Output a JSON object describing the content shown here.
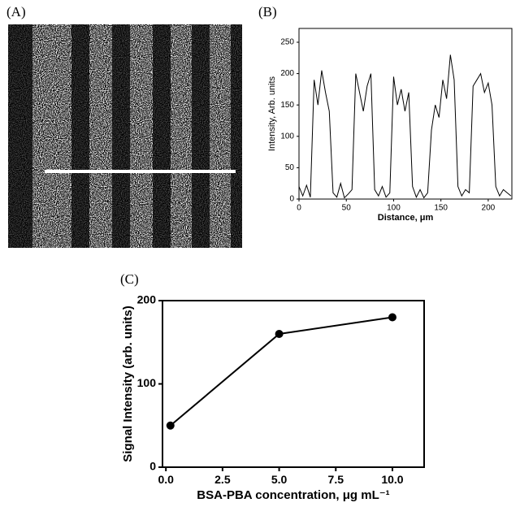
{
  "image_panel": {
    "label": "(A)"
  },
  "chart_data": [
    {
      "type": "line",
      "panel_label": "(B)",
      "x_label": "Distance, μm",
      "y_label": "Intensity, Arb. units",
      "xlim": [
        0,
        225
      ],
      "ylim": [
        0,
        272
      ],
      "xticks": [
        0,
        50,
        100,
        150,
        200
      ],
      "yticks": [
        0,
        50,
        100,
        150,
        200,
        250
      ],
      "markers": false,
      "color": "#000000",
      "series": [
        {
          "x": [
            0,
            4,
            8,
            12,
            16,
            20,
            24,
            28,
            32,
            36,
            40,
            44,
            48,
            52,
            56,
            60,
            64,
            68,
            72,
            76,
            80,
            84,
            88,
            92,
            96,
            100,
            104,
            108,
            112,
            116,
            120,
            124,
            128,
            132,
            136,
            140,
            144,
            148,
            152,
            156,
            160,
            164,
            168,
            172,
            176,
            180,
            184,
            188,
            192,
            196,
            200,
            204,
            208,
            212,
            216,
            220,
            224
          ],
          "values": [
            20,
            5,
            22,
            3,
            190,
            150,
            205,
            170,
            140,
            10,
            3,
            25,
            2,
            8,
            15,
            200,
            170,
            140,
            180,
            200,
            15,
            5,
            20,
            3,
            10,
            195,
            150,
            175,
            140,
            170,
            20,
            3,
            15,
            2,
            10,
            110,
            150,
            130,
            190,
            160,
            230,
            190,
            20,
            5,
            15,
            10,
            180,
            190,
            200,
            170,
            185,
            150,
            20,
            5,
            15,
            10,
            5
          ]
        }
      ]
    },
    {
      "type": "line",
      "panel_label": "(C)",
      "x_label": "BSA-PBA concentration, μg mL⁻¹",
      "y_label": "Signal Intensity (arb. units)",
      "xlim": [
        -0.15,
        11.4
      ],
      "ylim": [
        0,
        200
      ],
      "xticks": [
        {
          "value": 0,
          "label": "0.0"
        },
        {
          "value": 2.5,
          "label": "2.5"
        },
        {
          "value": 5,
          "label": "5.0"
        },
        {
          "value": 7.5,
          "label": "7.5"
        },
        {
          "value": 10,
          "label": "10.0"
        }
      ],
      "yticks": [
        0,
        100,
        200
      ],
      "markers": true,
      "color": "#000000",
      "series": [
        {
          "x": [
            0.2,
            5,
            10
          ],
          "values": [
            50,
            160,
            180
          ]
        }
      ]
    }
  ]
}
